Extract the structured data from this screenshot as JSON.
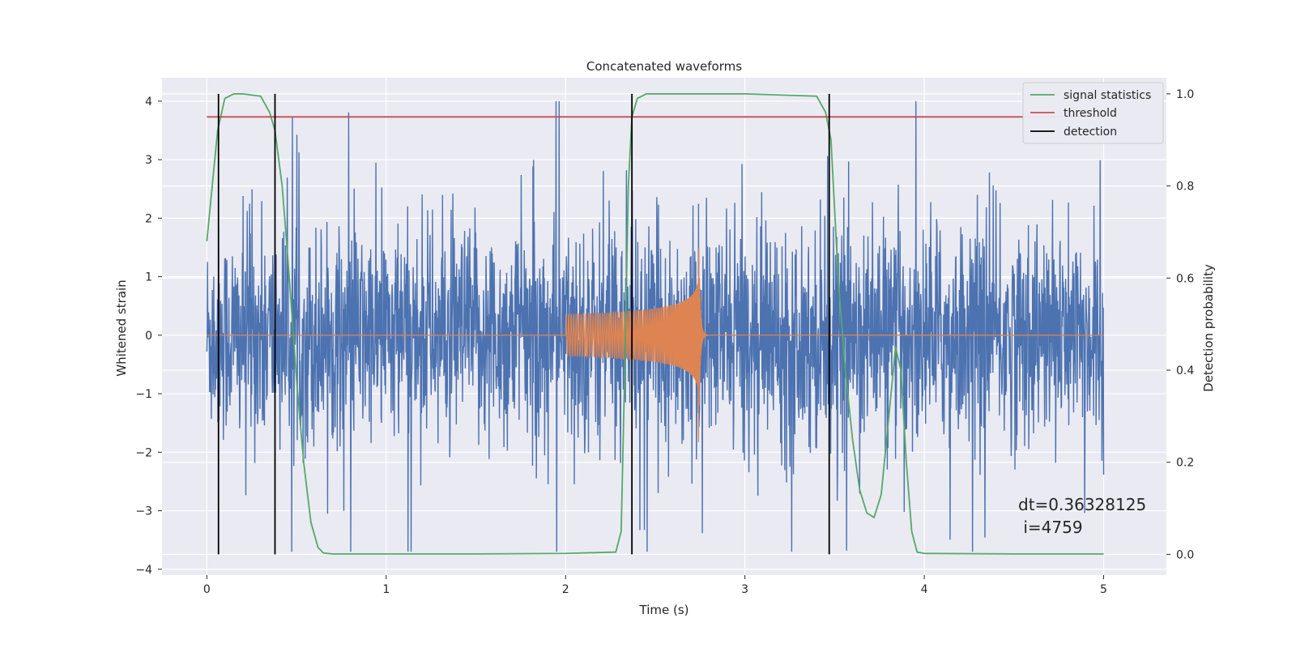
{
  "chart_data": {
    "type": "line",
    "title": "Concatenated waveforms",
    "xlabel": "Time (s)",
    "ylabel": "Whitened strain",
    "y2label": "Detection probability",
    "xlim": [
      -0.25,
      5.35
    ],
    "ylim": [
      -4.1,
      4.4
    ],
    "y2lim": [
      -0.045,
      1.035
    ],
    "xticks": [
      0,
      1,
      2,
      3,
      4,
      5
    ],
    "yticks": [
      -4,
      -3,
      -2,
      -1,
      0,
      1,
      2,
      3,
      4
    ],
    "y2ticks": [
      0.0,
      0.2,
      0.4,
      0.6,
      0.8,
      1.0
    ],
    "xtick_labels": [
      "0",
      "1",
      "2",
      "3",
      "4",
      "5"
    ],
    "ytick_labels": [
      "−4",
      "−3",
      "−2",
      "−1",
      "0",
      "1",
      "2",
      "3",
      "4"
    ],
    "y2tick_labels": [
      "0.0",
      "0.2",
      "0.4",
      "0.6",
      "0.8",
      "1.0"
    ],
    "grid": true,
    "legend_position": "top-right",
    "legend": [
      {
        "label": "signal statistics",
        "color": "#55a868"
      },
      {
        "label": "threshold",
        "color": "#c44e52"
      },
      {
        "label": "detection",
        "color": "#000000"
      }
    ],
    "series": [
      {
        "name": "signal statistics",
        "axis": "right",
        "color": "#55a868",
        "x": [
          0,
          0.03,
          0.06,
          0.1,
          0.15,
          0.2,
          0.3,
          0.35,
          0.38,
          0.42,
          0.46,
          0.5,
          0.54,
          0.58,
          0.62,
          0.65,
          0.7,
          1.0,
          1.5,
          2.0,
          2.28,
          2.31,
          2.33,
          2.35,
          2.37,
          2.4,
          2.45,
          2.5,
          3.0,
          3.4,
          3.45,
          3.48,
          3.52,
          3.56,
          3.6,
          3.64,
          3.68,
          3.72,
          3.76,
          3.8,
          3.84,
          3.87,
          3.9,
          3.93,
          3.96,
          4.0,
          4.5,
          5.0
        ],
        "y": [
          0.68,
          0.8,
          0.92,
          0.99,
          1.0,
          1.0,
          0.995,
          0.96,
          0.92,
          0.8,
          0.6,
          0.38,
          0.2,
          0.07,
          0.015,
          0.003,
          0.001,
          0.001,
          0.001,
          0.002,
          0.005,
          0.05,
          0.4,
          0.8,
          0.95,
          0.99,
          1.0,
          1.0,
          1.0,
          0.995,
          0.96,
          0.9,
          0.6,
          0.4,
          0.25,
          0.14,
          0.09,
          0.08,
          0.13,
          0.29,
          0.45,
          0.4,
          0.2,
          0.05,
          0.005,
          0.002,
          0.001,
          0.001
        ]
      },
      {
        "name": "threshold",
        "axis": "right",
        "color": "#c44e52",
        "x": [
          0,
          5
        ],
        "y": [
          0.95,
          0.95
        ]
      }
    ],
    "noise": {
      "color": "#4c72b0",
      "x_range": [
        0,
        5
      ],
      "typical_amplitude": [
        -1.3,
        1.3
      ],
      "peak_range": [
        -3.7,
        4.0
      ]
    },
    "injected_waveform": {
      "color": "#dd8452",
      "x_range": [
        0,
        5
      ],
      "chirp_start": 2.0,
      "merger": 2.74,
      "start_amplitude": 0.35,
      "peak_amplitude": 2.2
    },
    "detections": [
      0.065,
      0.38,
      2.37,
      3.47
    ],
    "detection_range": [
      0.0,
      1.0
    ],
    "annotation": "dt=0.36328125\n i=4759"
  }
}
